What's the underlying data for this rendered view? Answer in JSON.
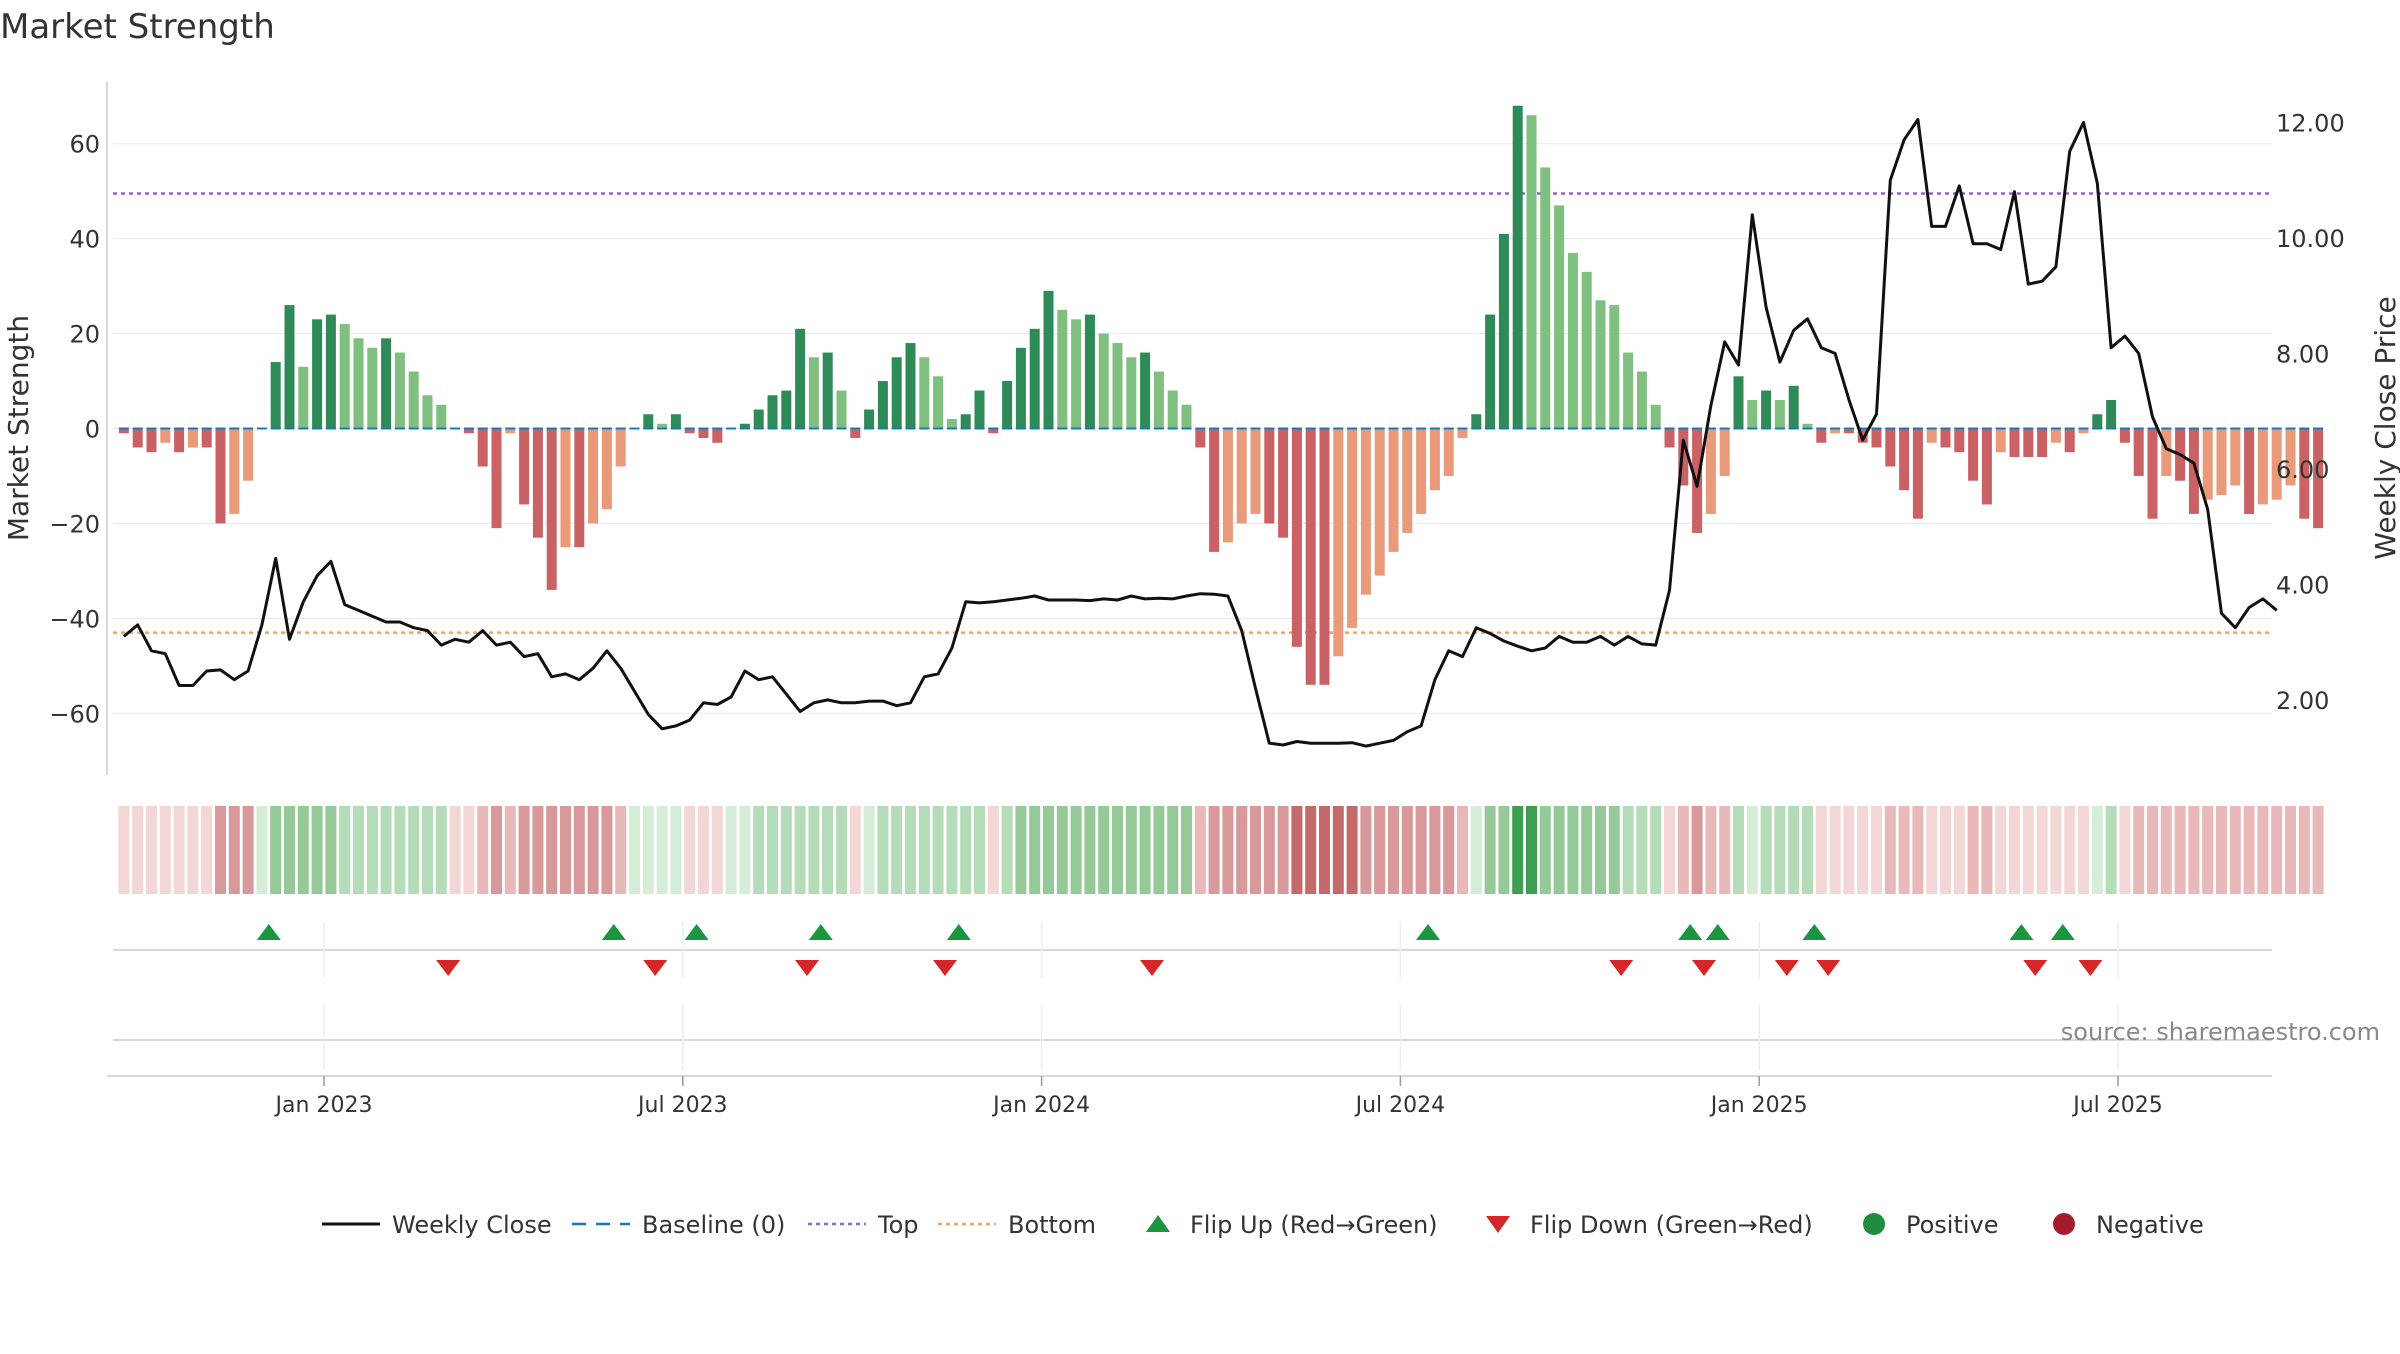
{
  "page": {
    "title": "Market Strength"
  },
  "chart_data": {
    "type": "bar",
    "title": "Market Strength",
    "ylabel": "Market Strength",
    "y2label": "Weekly Close Price",
    "ylim": [
      -73,
      73
    ],
    "y2lim": [
      0.7,
      12.7
    ],
    "yticks": [
      60,
      40,
      20,
      0,
      -20,
      -40,
      -60
    ],
    "ytick_labels": [
      "60",
      "40",
      "20",
      "0",
      "−20",
      "−40",
      "−60"
    ],
    "y2ticks": [
      12,
      10,
      8,
      6,
      4,
      2
    ],
    "y2tick_labels": [
      "12.00",
      "10.00",
      "8.00",
      "6.00",
      "4.00",
      "2.00"
    ],
    "xticks": [
      "Jan 2023",
      "Jul 2023",
      "Jan 2024",
      "Jul 2024",
      "Jan 2025",
      "Jul 2025"
    ],
    "xtick_weeks": [
      14.5,
      40.5,
      66.5,
      92.5,
      118.5,
      144.5
    ],
    "top_line": 49.5,
    "bottom_line": -43,
    "baseline": 0,
    "strength": [
      -1,
      -4,
      -5,
      -3,
      -5,
      -4,
      -4,
      -20,
      -18,
      -11,
      0,
      14,
      26,
      13,
      23,
      24,
      22,
      19,
      17,
      19,
      16,
      12,
      7,
      5,
      0,
      -1,
      -8,
      -21,
      -1,
      -16,
      -23,
      -34,
      -25,
      -25,
      -20,
      -17,
      -8,
      0,
      3,
      1,
      3,
      -1,
      -2,
      -3,
      0,
      1,
      4,
      7,
      8,
      21,
      15,
      16,
      8,
      -2,
      4,
      10,
      15,
      18,
      15,
      11,
      2,
      3,
      8,
      -1,
      10,
      17,
      21,
      29,
      25,
      23,
      24,
      20,
      18,
      15,
      16,
      12,
      8,
      5,
      -4,
      -26,
      -24,
      -20,
      -18,
      -20,
      -23,
      -46,
      -54,
      -54,
      -48,
      -42,
      -35,
      -31,
      -26,
      -22,
      -18,
      -13,
      -10,
      -2,
      3,
      24,
      41,
      68,
      66,
      55,
      47,
      37,
      33,
      27,
      26,
      16,
      12,
      5,
      -4,
      -12,
      -22,
      -18,
      -10,
      11,
      6,
      8,
      6,
      9,
      1,
      -3,
      -1,
      -1,
      -3,
      -4,
      -8,
      -13,
      -19,
      -3,
      -4,
      -5,
      -11,
      -16,
      -5,
      -6,
      -6,
      -6,
      -3,
      -5,
      -1,
      3,
      6,
      -3,
      -10,
      -19,
      -10,
      -11,
      -18,
      -15,
      -14,
      -12,
      -18,
      -16,
      -15,
      -12,
      -19,
      -21
    ],
    "weekly_close": [
      3.1,
      3.3,
      2.85,
      2.8,
      2.25,
      2.25,
      2.5,
      2.52,
      2.35,
      2.5,
      3.3,
      4.45,
      3.05,
      3.7,
      4.15,
      4.4,
      3.65,
      3.55,
      3.45,
      3.35,
      3.35,
      3.25,
      3.2,
      2.95,
      3.05,
      3.0,
      3.2,
      2.95,
      3.0,
      2.75,
      2.8,
      2.4,
      2.45,
      2.35,
      2.55,
      2.85,
      2.55,
      2.15,
      1.75,
      1.5,
      1.55,
      1.65,
      1.95,
      1.92,
      2.05,
      2.5,
      2.35,
      2.4,
      2.1,
      1.8,
      1.95,
      2.0,
      1.95,
      1.95,
      1.98,
      1.98,
      1.9,
      1.95,
      2.4,
      2.45,
      2.9,
      3.7,
      3.68,
      3.7,
      3.73,
      3.76,
      3.8,
      3.73,
      3.73,
      3.73,
      3.72,
      3.75,
      3.73,
      3.8,
      3.75,
      3.76,
      3.75,
      3.8,
      3.84,
      3.83,
      3.8,
      3.2,
      2.2,
      1.25,
      1.22,
      1.28,
      1.25,
      1.25,
      1.25,
      1.26,
      1.2,
      1.25,
      1.3,
      1.45,
      1.55,
      2.35,
      2.85,
      2.75,
      3.25,
      3.15,
      3.02,
      2.93,
      2.85,
      2.9,
      3.1,
      3.0,
      3.0,
      3.1,
      2.95,
      3.1,
      2.97,
      2.95,
      3.9,
      6.5,
      5.7,
      7.1,
      8.2,
      7.8,
      10.4,
      8.8,
      7.85,
      8.4,
      8.6,
      8.1,
      8.0,
      7.2,
      6.5,
      6.95,
      11.0,
      11.7,
      12.05,
      10.2,
      10.2,
      10.9,
      9.9,
      9.9,
      9.8,
      10.8,
      9.2,
      9.25,
      9.5,
      11.5,
      12.0,
      10.95,
      8.1,
      8.3,
      8.0,
      6.9,
      6.35,
      6.25,
      6.1,
      5.3,
      3.5,
      3.25,
      3.6,
      3.75,
      3.55
    ],
    "regime_strip": [
      1,
      1,
      1,
      1,
      1,
      1,
      1,
      3,
      3,
      3,
      4,
      6,
      6,
      6,
      6,
      6,
      5,
      5,
      5,
      5,
      5,
      5,
      5,
      5,
      1,
      1,
      2,
      3,
      2,
      3,
      3,
      3,
      3,
      3,
      3,
      3,
      2,
      4,
      4,
      4,
      4,
      1,
      1,
      1,
      4,
      4,
      5,
      5,
      5,
      5,
      5,
      5,
      5,
      1,
      4,
      5,
      5,
      5,
      5,
      5,
      5,
      5,
      5,
      1,
      5,
      6,
      6,
      6,
      6,
      6,
      6,
      6,
      6,
      6,
      6,
      6,
      6,
      6,
      2,
      3,
      3,
      3,
      3,
      3,
      3,
      7,
      7,
      7,
      7,
      7,
      3,
      3,
      3,
      3,
      3,
      3,
      3,
      2,
      4,
      6,
      6,
      8,
      8,
      6,
      6,
      6,
      6,
      6,
      6,
      5,
      5,
      5,
      1,
      2,
      3,
      2,
      2,
      5,
      4,
      5,
      5,
      5,
      5,
      1,
      1,
      1,
      1,
      1,
      2,
      2,
      2,
      1,
      1,
      1,
      2,
      2,
      1,
      1,
      1,
      1,
      1,
      1,
      1,
      4,
      5,
      1,
      2,
      2,
      2,
      2,
      2,
      2,
      2,
      2,
      2,
      2,
      2,
      2,
      2,
      2
    ],
    "flip_up_weeks": [
      10.5,
      35.5,
      41.5,
      50.5,
      60.5,
      94.5,
      113.5,
      115.5,
      122.5,
      137.5,
      140.5
    ],
    "flip_down_weeks": [
      23.5,
      38.5,
      49.5,
      59.5,
      74.5,
      108.5,
      114.5,
      120.5,
      123.5,
      138.5,
      142.5
    ],
    "legend": [
      {
        "label": "Weekly Close",
        "kind": "line",
        "color": "#111111"
      },
      {
        "label": "Baseline (0)",
        "kind": "dash",
        "color": "#1f77b4"
      },
      {
        "label": "Top",
        "kind": "dot",
        "color": "#9467bd"
      },
      {
        "label": "Bottom",
        "kind": "dot",
        "color": "#f4a261"
      },
      {
        "label": "Flip Up (Red→Green)",
        "kind": "up",
        "color": "#1a9641"
      },
      {
        "label": "Flip Down (Green→Red)",
        "kind": "down",
        "color": "#d62728"
      },
      {
        "label": "Positive",
        "kind": "circle",
        "color": "#1e8e3e"
      },
      {
        "label": "Negative",
        "kind": "circle",
        "color": "#a61c2a"
      }
    ],
    "source_text": "source: sharemaestro.com",
    "colors": {
      "pos_dark": "#2e8b57",
      "pos_light": "#7fbf7f",
      "neg_dark": "#c96165",
      "neg_light": "#e89a7b",
      "line": "#111111",
      "grid": "#e8e8e8"
    },
    "strip_colors": [
      "#f3d6d6",
      "#e9b8b8",
      "#d9999b",
      "#d5ecd7",
      "#b5dcb8",
      "#95ca98",
      "#c56a6b",
      "#3e9e4f"
    ]
  }
}
